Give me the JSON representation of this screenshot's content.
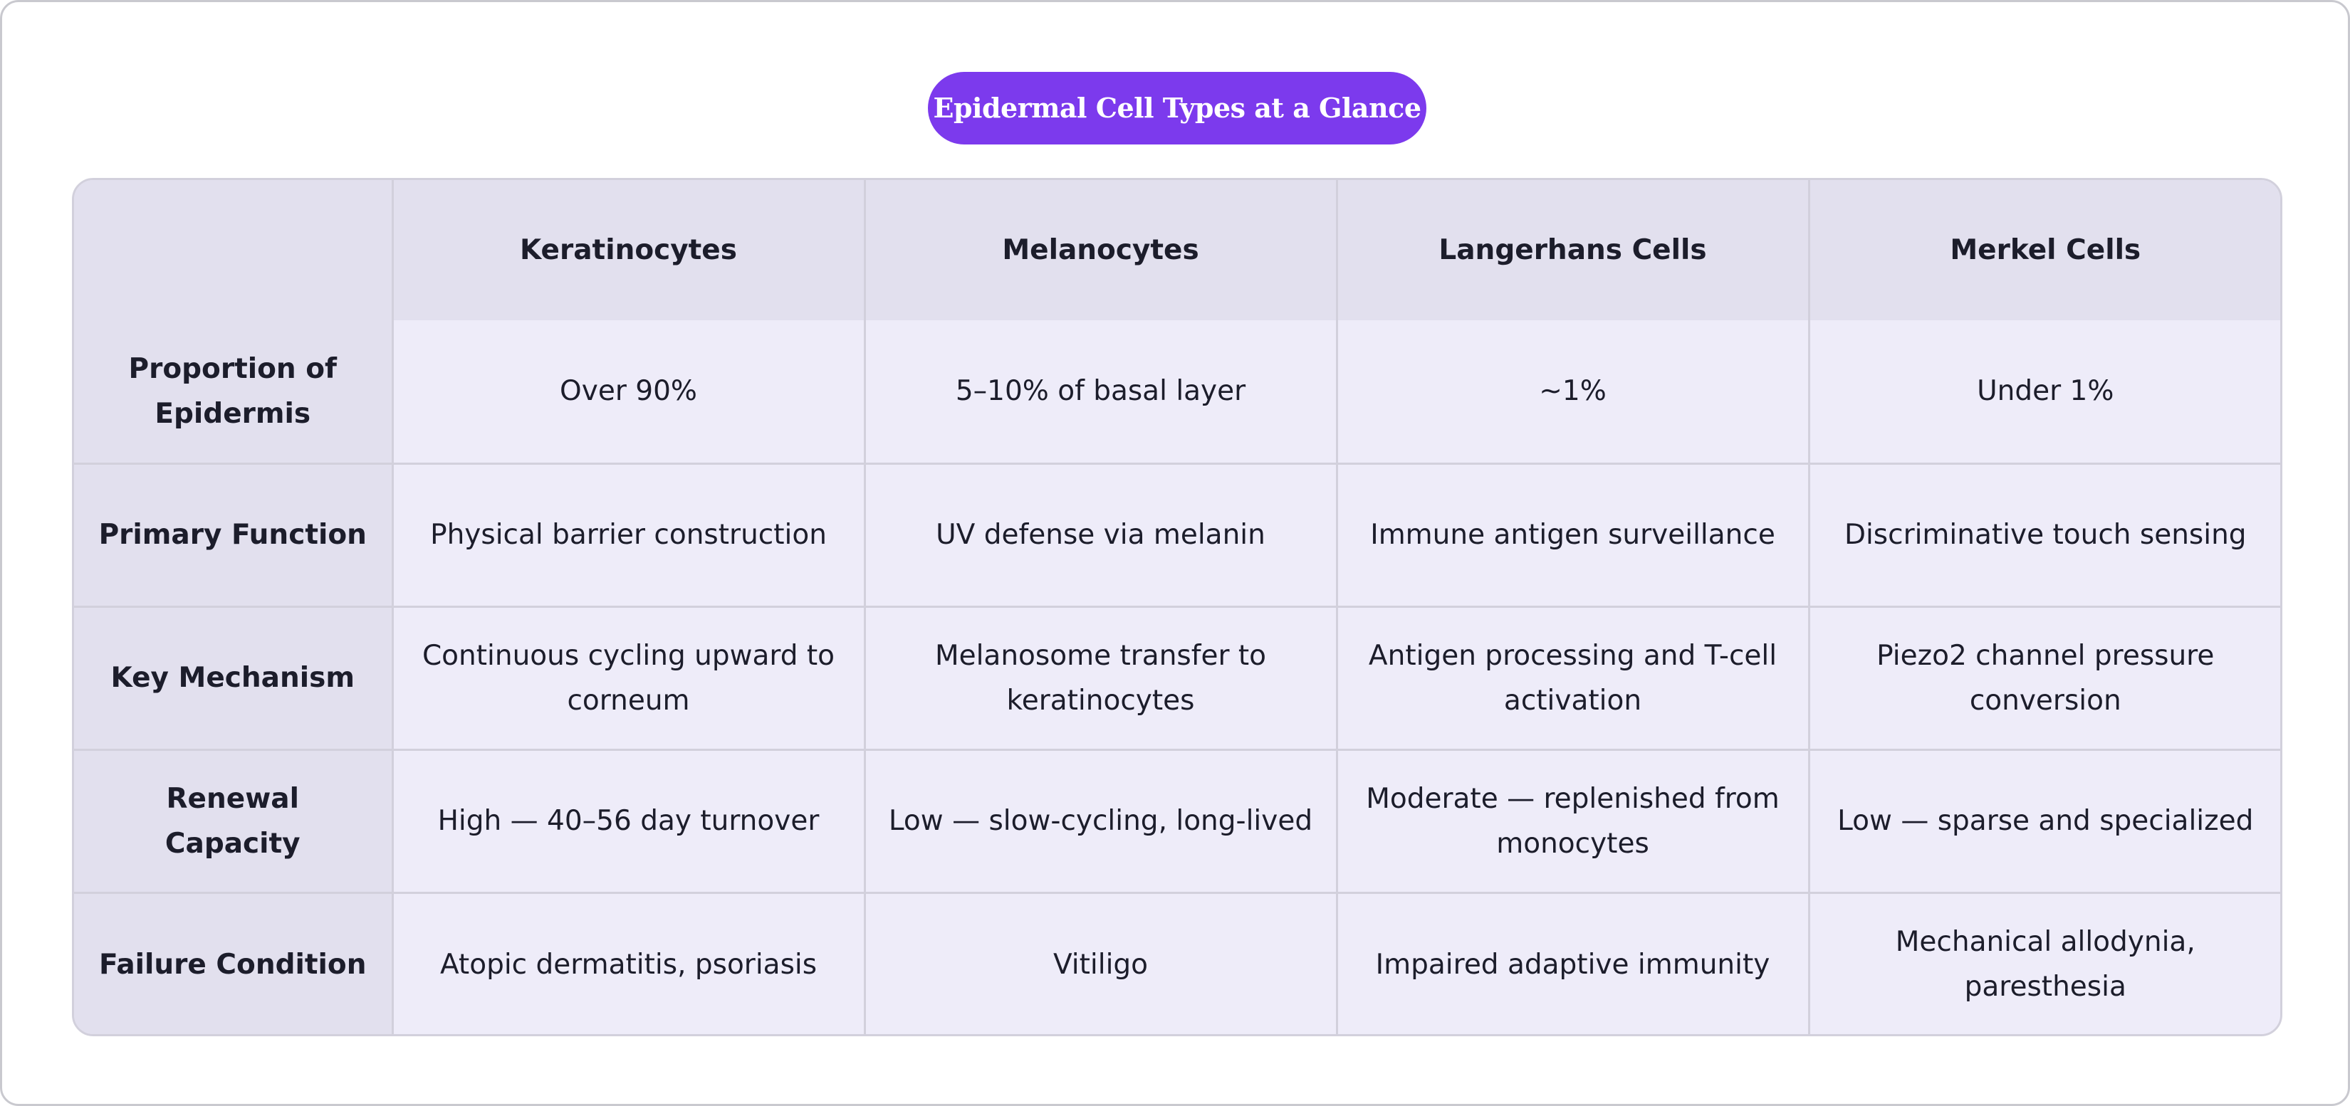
{
  "title": "Epidermal Cell Types at a Glance",
  "table": {
    "corner": "",
    "columns": [
      "Keratinocytes",
      "Melanocytes",
      "Langerhans Cells",
      "Merkel Cells"
    ],
    "rows": [
      {
        "label": "Proportion of Epidermis",
        "cells": [
          "Over 90%",
          "5–10% of basal layer",
          "~1%",
          "Under 1%"
        ]
      },
      {
        "label": "Primary Function",
        "cells": [
          "Physical barrier construction",
          "UV defense via melanin",
          "Immune antigen surveillance",
          "Discriminative touch sensing"
        ]
      },
      {
        "label": "Key Mechanism",
        "cells": [
          "Continuous cycling upward to corneum",
          "Melanosome transfer to keratinocytes",
          "Antigen processing and T-cell activation",
          "Piezo2 channel pressure conversion"
        ]
      },
      {
        "label": "Renewal Capacity",
        "cells": [
          "High — 40–56 day turnover",
          "Low — slow-cycling, long-lived",
          "Moderate — replenished from monocytes",
          "Low — sparse and specialized"
        ]
      },
      {
        "label": "Failure Condition",
        "cells": [
          "Atopic dermatitis, psoriasis",
          "Vitiligo",
          "Impaired adaptive immunity",
          "Mechanical allodynia, paresthesia"
        ]
      }
    ]
  }
}
